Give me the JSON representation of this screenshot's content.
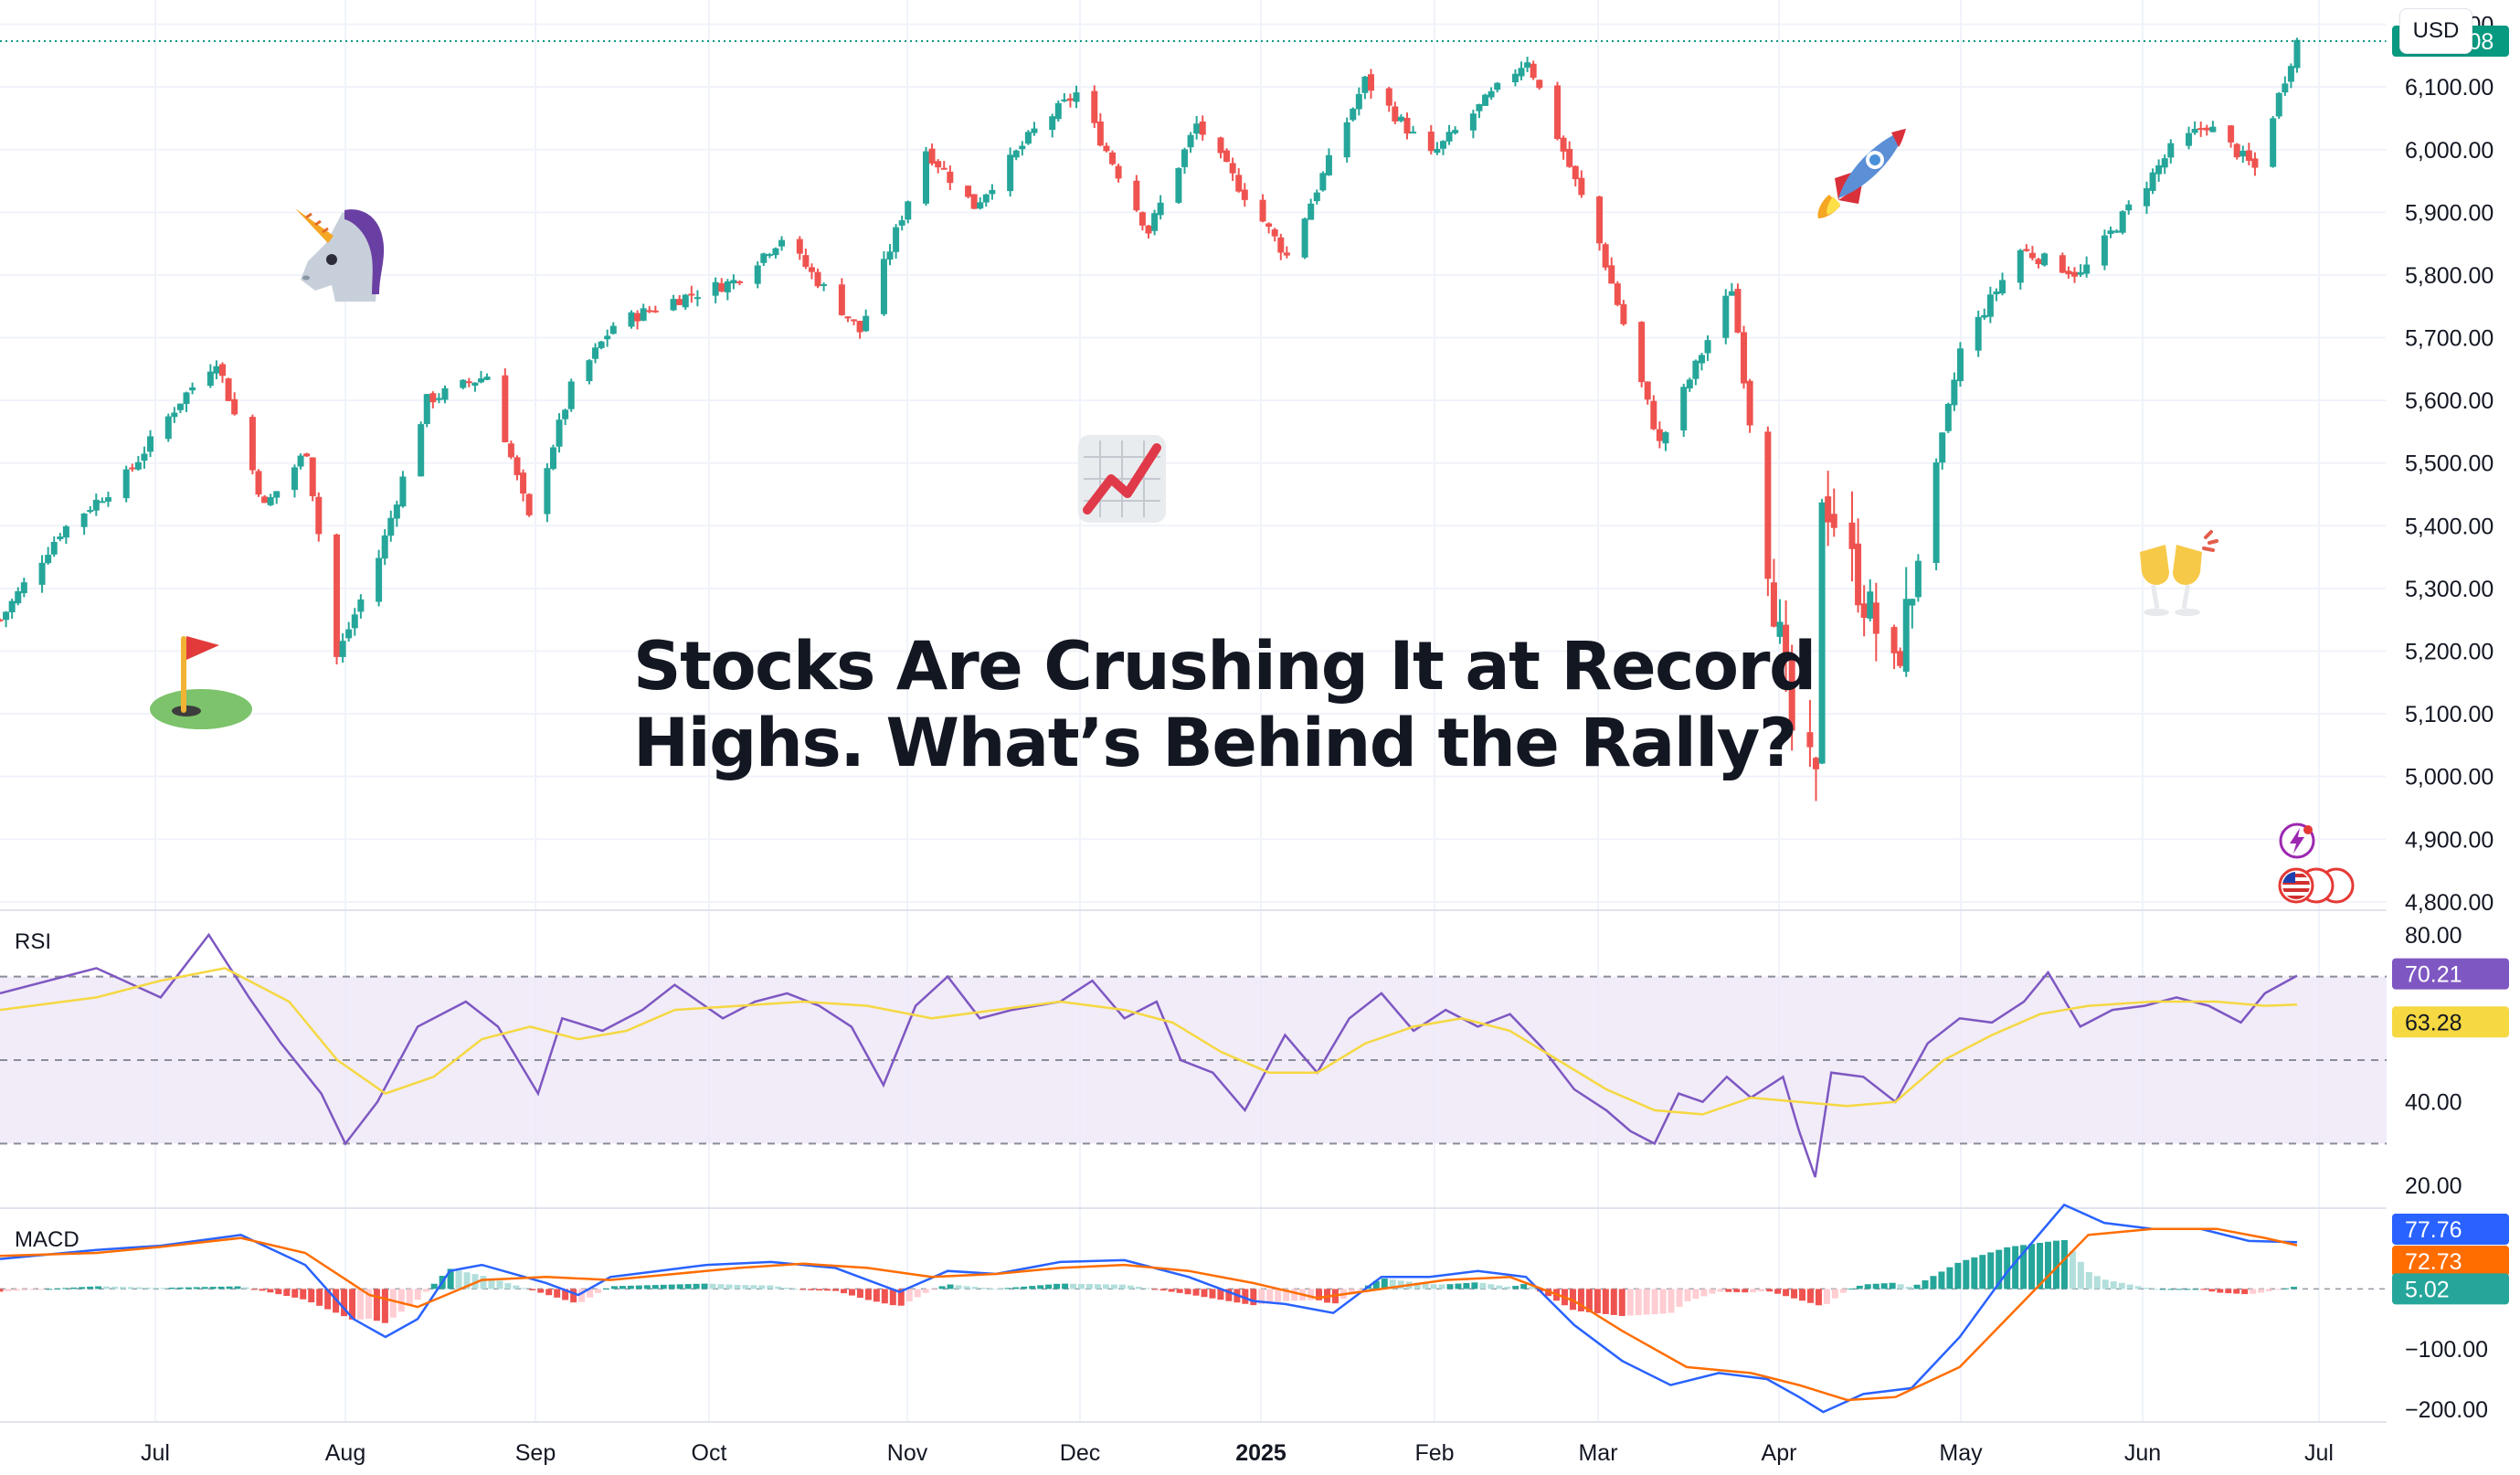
{
  "currency_button": "USD",
  "headline": {
    "line1": "Stocks Are Crushing It at Record",
    "line2": "Highs. What’s Behind the Rally?"
  },
  "emojis": [
    "unicorn-icon",
    "golf-flag-icon",
    "chart-increasing-icon",
    "rocket-icon",
    "clinking-glasses-icon",
    "energy-badge-icon",
    "us-flag-coins-icon"
  ],
  "colors": {
    "up": "#26a69a",
    "down": "#ef5350",
    "rsi": "#7e57c2",
    "rsi_ma": "#f5d842",
    "macd": "#2962ff",
    "signal": "#ff6d00",
    "last_price": "#089981"
  },
  "chart_data": [
    {
      "type": "candlestick",
      "title": "",
      "y_axis_ticks": [
        "6,200.00",
        "6,100.00",
        "6,000.00",
        "5,900.00",
        "5,800.00",
        "5,700.00",
        "5,600.00",
        "5,500.00",
        "5,400.00",
        "5,300.00",
        "5,200.00",
        "5,100.00",
        "5,000.00",
        "4,900.00",
        "4,800.00"
      ],
      "ylim": [
        4740,
        6230
      ],
      "last_price_label": "6,173.08",
      "last_price": 6173.08,
      "x_axis_ticks": [
        "Jul",
        "Aug",
        "Sep",
        "Oct",
        "Nov",
        "Dec",
        "2025",
        "Feb",
        "Mar",
        "Apr",
        "May",
        "Jun",
        "Jul"
      ],
      "close_path": [
        {
          "date": "2024-06-10",
          "close": 5250
        },
        {
          "date": "2024-06-20",
          "close": 5390
        },
        {
          "date": "2024-07-01",
          "close": 5480
        },
        {
          "date": "2024-07-10",
          "close": 5600
        },
        {
          "date": "2024-07-16",
          "close": 5665
        },
        {
          "date": "2024-07-24",
          "close": 5430
        },
        {
          "date": "2024-07-31",
          "close": 5520
        },
        {
          "date": "2024-08-05",
          "close": 5190
        },
        {
          "date": "2024-08-12",
          "close": 5350
        },
        {
          "date": "2024-08-20",
          "close": 5600
        },
        {
          "date": "2024-08-30",
          "close": 5640
        },
        {
          "date": "2024-09-06",
          "close": 5410
        },
        {
          "date": "2024-09-13",
          "close": 5620
        },
        {
          "date": "2024-09-20",
          "close": 5720
        },
        {
          "date": "2024-09-30",
          "close": 5760
        },
        {
          "date": "2024-10-10",
          "close": 5790
        },
        {
          "date": "2024-10-18",
          "close": 5860
        },
        {
          "date": "2024-10-31",
          "close": 5710
        },
        {
          "date": "2024-11-11",
          "close": 6000
        },
        {
          "date": "2024-11-19",
          "close": 5910
        },
        {
          "date": "2024-11-29",
          "close": 6030
        },
        {
          "date": "2024-12-06",
          "close": 6090
        },
        {
          "date": "2024-12-18",
          "close": 5870
        },
        {
          "date": "2024-12-26",
          "close": 6040
        },
        {
          "date": "2025-01-10",
          "close": 5830
        },
        {
          "date": "2025-01-23",
          "close": 6110
        },
        {
          "date": "2025-02-03",
          "close": 5990
        },
        {
          "date": "2025-02-19",
          "close": 6145
        },
        {
          "date": "2025-03-03",
          "close": 5850
        },
        {
          "date": "2025-03-13",
          "close": 5530
        },
        {
          "date": "2025-03-25",
          "close": 5780
        },
        {
          "date": "2025-04-04",
          "close": 5070
        },
        {
          "date": "2025-04-08",
          "close": 4980
        },
        {
          "date": "2025-04-09",
          "close": 5460
        },
        {
          "date": "2025-04-21",
          "close": 5160
        },
        {
          "date": "2025-05-02",
          "close": 5680
        },
        {
          "date": "2025-05-12",
          "close": 5840
        },
        {
          "date": "2025-05-22",
          "close": 5800
        },
        {
          "date": "2025-06-06",
          "close": 6000
        },
        {
          "date": "2025-06-12",
          "close": 6040
        },
        {
          "date": "2025-06-20",
          "close": 5970
        },
        {
          "date": "2025-06-27",
          "close": 6173
        }
      ]
    },
    {
      "type": "line",
      "title": "RSI",
      "y_axis_ticks": [
        "80.00",
        "60.00",
        "40.00",
        "20.00"
      ],
      "ylim": [
        15,
        85
      ],
      "bands": [
        70,
        50,
        30
      ],
      "series": [
        {
          "values_label": "70.21",
          "points": [
            [
              0,
              66
            ],
            [
              60,
              72
            ],
            [
              100,
              65
            ],
            [
              130,
              80
            ],
            [
              155,
              65
            ],
            [
              175,
              54
            ],
            [
              200,
              42
            ],
            [
              215,
              30
            ],
            [
              235,
              40
            ],
            [
              260,
              58
            ],
            [
              290,
              64
            ],
            [
              310,
              58
            ],
            [
              335,
              42
            ],
            [
              350,
              60
            ],
            [
              375,
              57
            ],
            [
              400,
              62
            ],
            [
              420,
              68
            ],
            [
              450,
              60
            ],
            [
              470,
              64
            ],
            [
              490,
              66
            ],
            [
              510,
              63
            ],
            [
              530,
              58
            ],
            [
              550,
              44
            ],
            [
              570,
              63
            ],
            [
              590,
              70
            ],
            [
              610,
              60
            ],
            [
              630,
              62
            ],
            [
              660,
              64
            ],
            [
              680,
              69
            ],
            [
              700,
              60
            ],
            [
              720,
              64
            ],
            [
              735,
              50
            ],
            [
              755,
              47
            ],
            [
              775,
              38
            ],
            [
              800,
              56
            ],
            [
              820,
              47
            ],
            [
              840,
              60
            ],
            [
              860,
              66
            ],
            [
              880,
              57
            ],
            [
              900,
              62
            ],
            [
              920,
              58
            ],
            [
              940,
              61
            ],
            [
              960,
              53
            ],
            [
              980,
              43
            ],
            [
              1000,
              38
            ],
            [
              1015,
              33
            ],
            [
              1030,
              30
            ],
            [
              1045,
              42
            ],
            [
              1060,
              40
            ],
            [
              1075,
              46
            ],
            [
              1090,
              41
            ],
            [
              1110,
              46
            ],
            [
              1120,
              33
            ],
            [
              1130,
              22
            ],
            [
              1140,
              47
            ],
            [
              1160,
              46
            ],
            [
              1180,
              40
            ],
            [
              1200,
              54
            ],
            [
              1220,
              60
            ],
            [
              1240,
              59
            ],
            [
              1260,
              64
            ],
            [
              1275,
              71
            ],
            [
              1295,
              58
            ],
            [
              1315,
              62
            ],
            [
              1335,
              63
            ],
            [
              1355,
              65
            ],
            [
              1375,
              63
            ],
            [
              1395,
              59
            ],
            [
              1410,
              66
            ],
            [
              1430,
              70.21
            ]
          ]
        },
        {
          "values_label": "63.28",
          "points": [
            [
              0,
              62
            ],
            [
              60,
              65
            ],
            [
              100,
              69
            ],
            [
              140,
              72
            ],
            [
              180,
              64
            ],
            [
              210,
              50
            ],
            [
              240,
              42
            ],
            [
              270,
              46
            ],
            [
              300,
              55
            ],
            [
              330,
              58
            ],
            [
              360,
              55
            ],
            [
              390,
              57
            ],
            [
              420,
              62
            ],
            [
              460,
              63
            ],
            [
              500,
              64
            ],
            [
              540,
              63
            ],
            [
              580,
              60
            ],
            [
              620,
              62
            ],
            [
              660,
              64
            ],
            [
              700,
              62
            ],
            [
              730,
              59
            ],
            [
              760,
              52
            ],
            [
              790,
              47
            ],
            [
              820,
              47
            ],
            [
              850,
              54
            ],
            [
              880,
              58
            ],
            [
              910,
              60
            ],
            [
              940,
              57
            ],
            [
              970,
              50
            ],
            [
              1000,
              43
            ],
            [
              1030,
              38
            ],
            [
              1060,
              37
            ],
            [
              1090,
              41
            ],
            [
              1120,
              40
            ],
            [
              1150,
              39
            ],
            [
              1180,
              40
            ],
            [
              1210,
              50
            ],
            [
              1240,
              56
            ],
            [
              1270,
              61
            ],
            [
              1300,
              63
            ],
            [
              1340,
              64
            ],
            [
              1380,
              64
            ],
            [
              1410,
              63
            ],
            [
              1430,
              63.28
            ]
          ]
        }
      ]
    },
    {
      "type": "line",
      "title": "MACD",
      "y_axis_ticks": [
        "-100.00",
        "-200.00"
      ],
      "ylim": [
        -220,
        130
      ],
      "series": [
        {
          "values_label": "77.76",
          "points": [
            [
              0,
              50
            ],
            [
              60,
              65
            ],
            [
              100,
              72
            ],
            [
              150,
              90
            ],
            [
              190,
              40
            ],
            [
              220,
              -50
            ],
            [
              240,
              -80
            ],
            [
              260,
              -50
            ],
            [
              280,
              30
            ],
            [
              300,
              40
            ],
            [
              340,
              10
            ],
            [
              360,
              -10
            ],
            [
              380,
              20
            ],
            [
              410,
              30
            ],
            [
              440,
              40
            ],
            [
              480,
              45
            ],
            [
              520,
              35
            ],
            [
              560,
              -5
            ],
            [
              590,
              30
            ],
            [
              620,
              25
            ],
            [
              660,
              45
            ],
            [
              700,
              48
            ],
            [
              740,
              20
            ],
            [
              780,
              -20
            ],
            [
              800,
              -25
            ],
            [
              830,
              -40
            ],
            [
              860,
              20
            ],
            [
              890,
              20
            ],
            [
              920,
              30
            ],
            [
              950,
              20
            ],
            [
              980,
              -60
            ],
            [
              1010,
              -120
            ],
            [
              1040,
              -160
            ],
            [
              1070,
              -140
            ],
            [
              1100,
              -150
            ],
            [
              1120,
              -180
            ],
            [
              1135,
              -205
            ],
            [
              1160,
              -175
            ],
            [
              1190,
              -165
            ],
            [
              1220,
              -80
            ],
            [
              1250,
              30
            ],
            [
              1285,
              140
            ],
            [
              1310,
              110
            ],
            [
              1340,
              100
            ],
            [
              1370,
              100
            ],
            [
              1400,
              80
            ],
            [
              1430,
              77.76
            ]
          ]
        },
        {
          "values_label": "72.73",
          "points": [
            [
              0,
              55
            ],
            [
              60,
              60
            ],
            [
              100,
              70
            ],
            [
              150,
              85
            ],
            [
              190,
              60
            ],
            [
              230,
              -10
            ],
            [
              260,
              -30
            ],
            [
              300,
              15
            ],
            [
              340,
              20
            ],
            [
              380,
              15
            ],
            [
              420,
              25
            ],
            [
              460,
              35
            ],
            [
              500,
              42
            ],
            [
              540,
              35
            ],
            [
              580,
              20
            ],
            [
              620,
              25
            ],
            [
              660,
              35
            ],
            [
              700,
              40
            ],
            [
              740,
              30
            ],
            [
              780,
              10
            ],
            [
              820,
              -15
            ],
            [
              860,
              0
            ],
            [
              900,
              15
            ],
            [
              940,
              20
            ],
            [
              980,
              -20
            ],
            [
              1010,
              -70
            ],
            [
              1050,
              -130
            ],
            [
              1090,
              -140
            ],
            [
              1120,
              -160
            ],
            [
              1150,
              -185
            ],
            [
              1180,
              -180
            ],
            [
              1220,
              -130
            ],
            [
              1260,
              -20
            ],
            [
              1300,
              90
            ],
            [
              1340,
              100
            ],
            [
              1380,
              100
            ],
            [
              1410,
              85
            ],
            [
              1430,
              72.73
            ]
          ]
        }
      ],
      "histogram_label": "5.02"
    }
  ]
}
